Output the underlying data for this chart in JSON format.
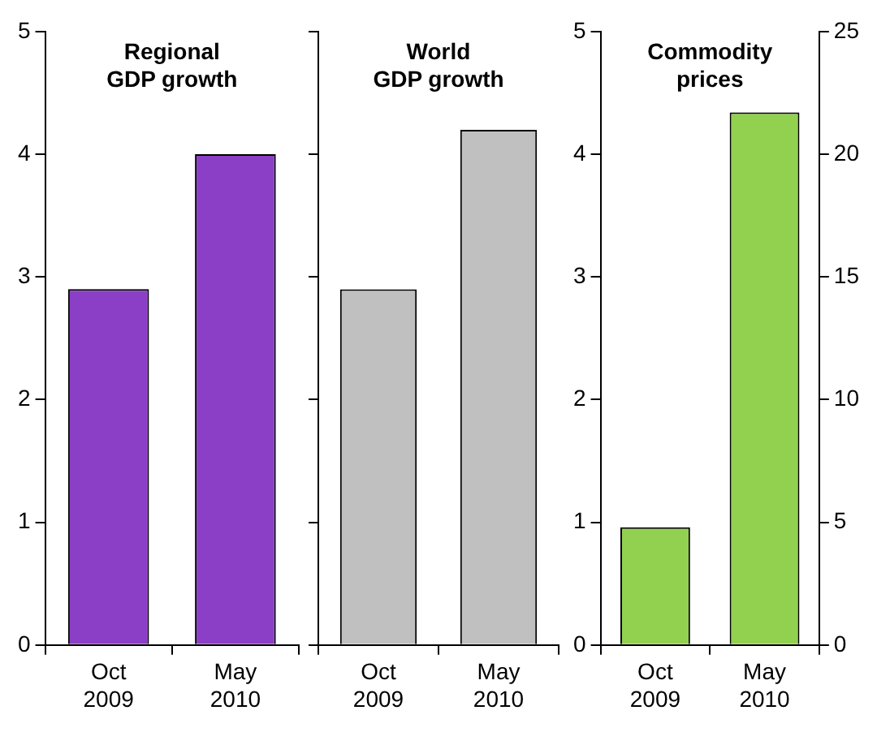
{
  "chart_data": [
    {
      "type": "bar",
      "title": "Regional GDP growth",
      "categories": [
        "Oct 2009",
        "May 2010"
      ],
      "values": [
        2.9,
        4.0
      ],
      "color": "#8b3fc6",
      "ylim": [
        0,
        5
      ],
      "yticks": [
        0,
        1,
        2,
        3,
        4,
        5
      ]
    },
    {
      "type": "bar",
      "title": "World GDP growth",
      "categories": [
        "Oct 2009",
        "May 2010"
      ],
      "values": [
        2.9,
        4.2
      ],
      "color": "#c0c0c0",
      "ylim": [
        0,
        5
      ],
      "yticks": [
        0,
        1,
        2,
        3,
        4,
        5
      ],
      "tick_labels": "x"
    },
    {
      "type": "bar",
      "title": "Commodity prices",
      "categories": [
        "Oct 2009",
        "May 2010"
      ],
      "series": [
        {
          "color": "#92d050",
          "values": [
            4.8,
            21.7
          ],
          "axis": "y2"
        }
      ],
      "ylim": [
        0,
        5
      ],
      "yticks": [
        0,
        1,
        2,
        3,
        4,
        5
      ],
      "y2lim": [
        0,
        25
      ],
      "y2ticks": [
        0,
        5,
        10,
        15,
        20,
        25
      ]
    }
  ]
}
